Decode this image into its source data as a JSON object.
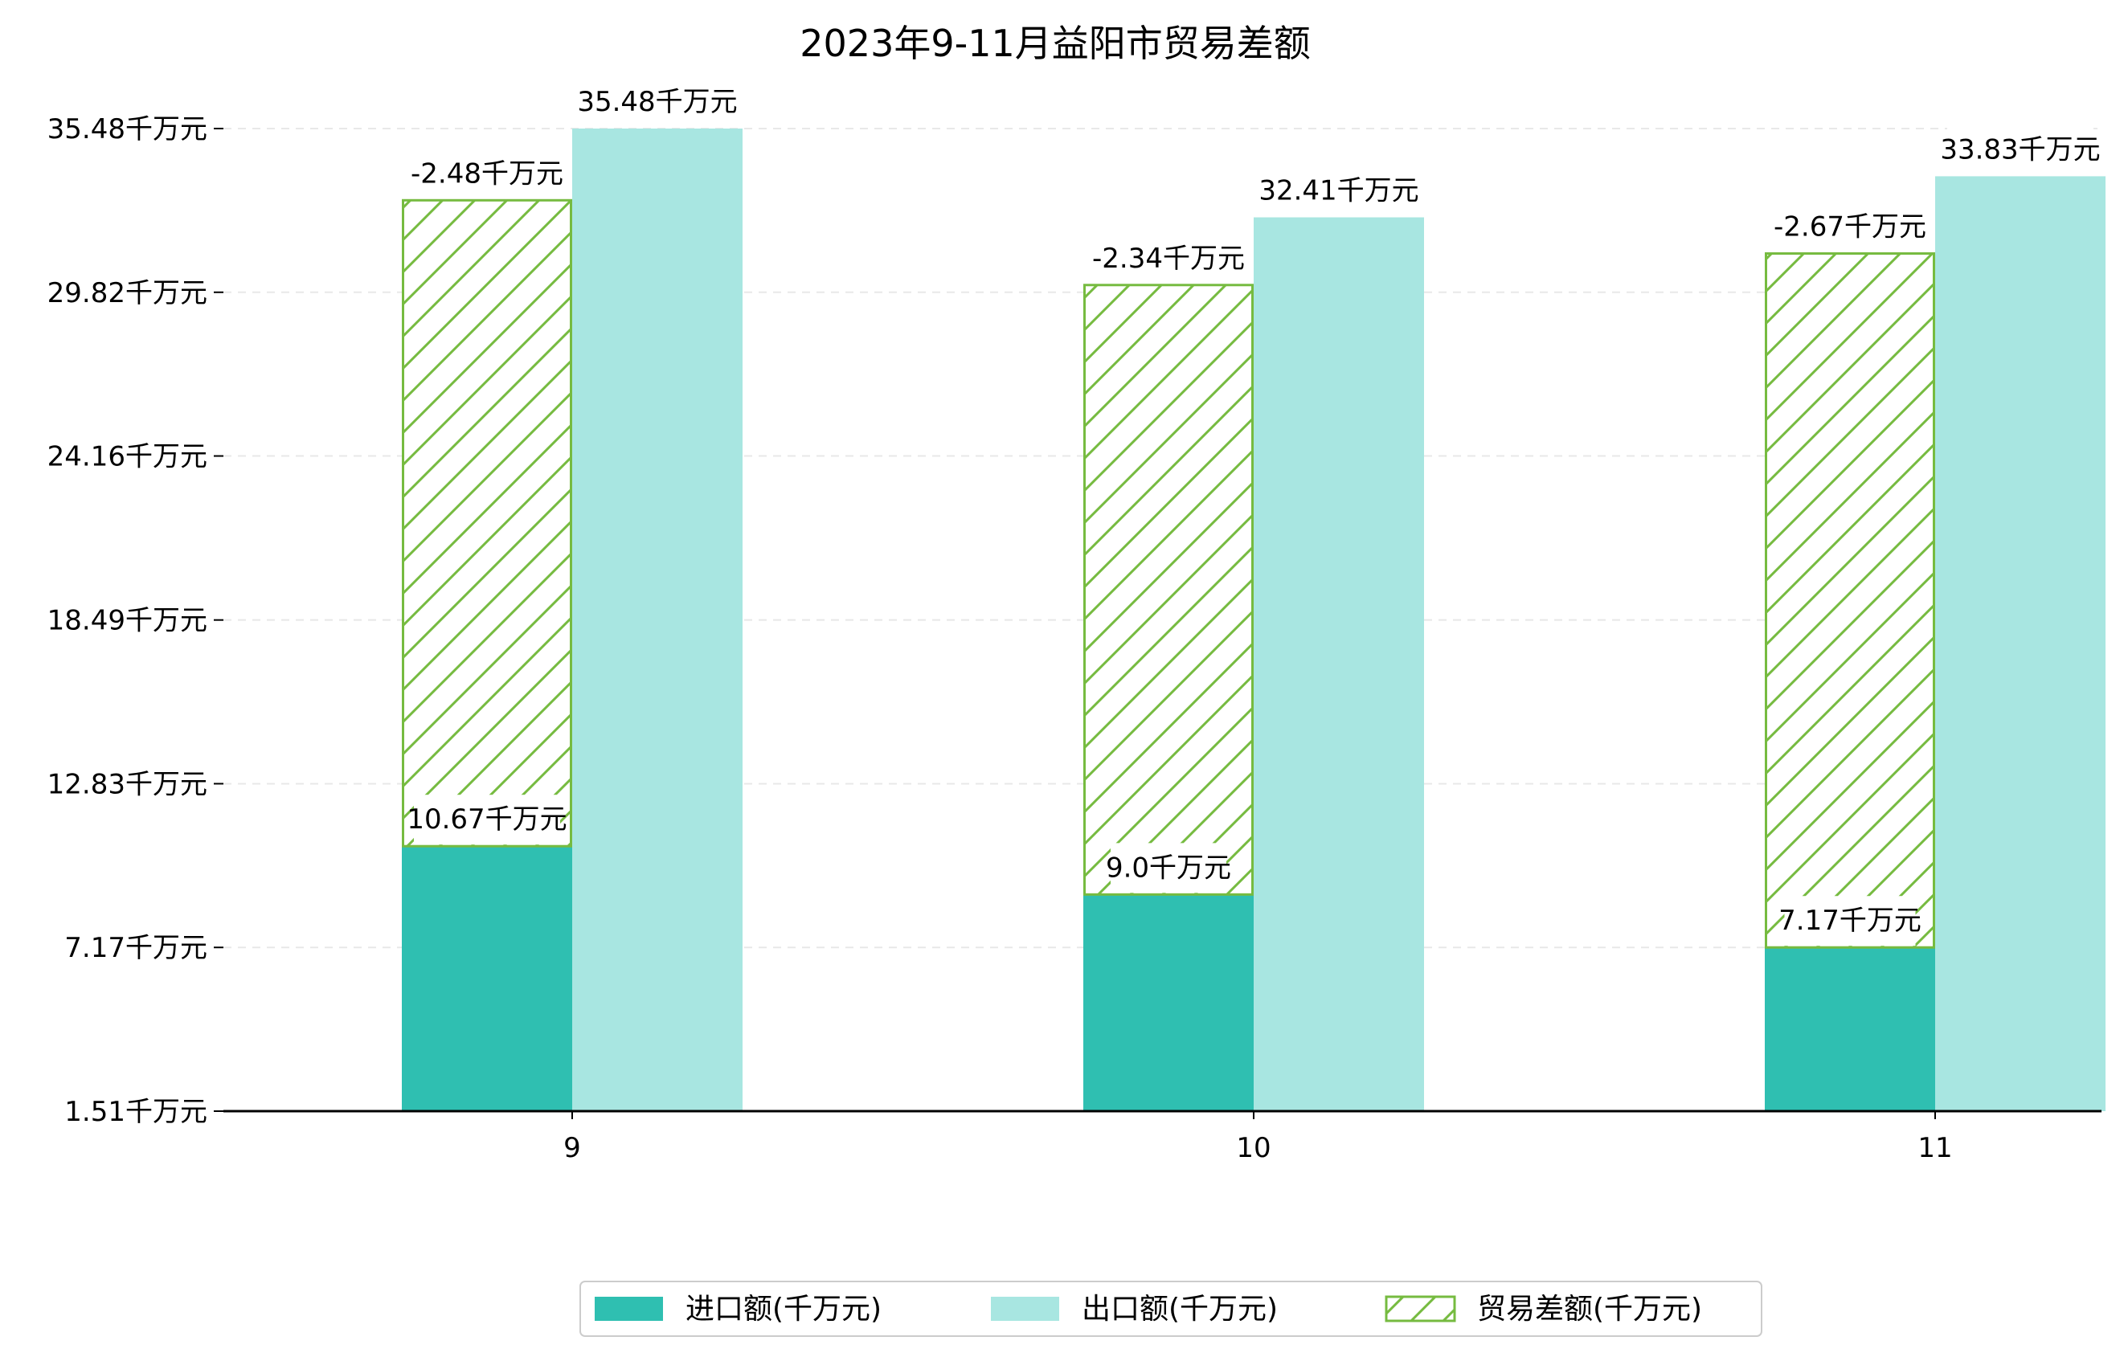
{
  "chart_data": {
    "type": "bar",
    "title": "2023年9-11月益阳市贸易差额",
    "xlabel": "",
    "ylabel": "",
    "categories": [
      "9",
      "10",
      "11"
    ],
    "series": [
      {
        "name": "进口额(千万元)",
        "values": [
          10.67,
          9.0,
          7.17
        ],
        "color": "#2fbfb1"
      },
      {
        "name": "出口额(千万元)",
        "values": [
          35.48,
          32.41,
          33.83
        ],
        "color": "#a8e6e1"
      },
      {
        "name": "贸易差额(千万元)",
        "values": [
          -2.48,
          -2.34,
          -2.67
        ],
        "color": "#76bb40",
        "pattern": "hatch"
      }
    ],
    "data_labels": [
      [
        "10.67千万元",
        "9.0千万元",
        "7.17千万元"
      ],
      [
        "35.48千万元",
        "32.41千万元",
        "33.83千万元"
      ],
      [
        "-2.48千万元",
        "-2.34千万元",
        "-2.67千万元"
      ]
    ],
    "yticks": [
      1.51,
      7.17,
      12.83,
      18.49,
      24.16,
      29.82,
      35.48
    ],
    "ytick_labels": [
      "1.51千万元",
      "7.17千万元",
      "12.83千万元",
      "18.49千万元",
      "24.16千万元",
      "29.82千万元",
      "35.48千万元"
    ],
    "ylim": [
      1.51,
      37.0
    ],
    "grid": "y-dashed",
    "legend_position": "bottom-center"
  }
}
